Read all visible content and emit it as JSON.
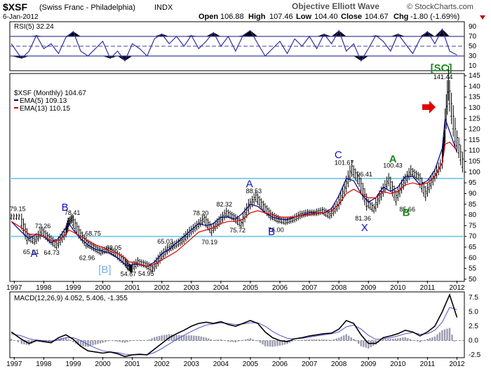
{
  "header": {
    "symbol": "$XSF",
    "name": "(Swiss Franc - Philadelphia)",
    "exchange": "INDX",
    "date": "6-Jan-2012",
    "subtitle": "Objective Elliott Wave",
    "brand": "© StockCharts.com",
    "open_label": "Open",
    "open": "106.88",
    "high_label": "High",
    "high": "107.46",
    "low_label": "Low",
    "low": "104.40",
    "close_label": "Close",
    "close": "104.67",
    "chg_label": "Chg",
    "chg": "-1.80 (-1.69%)"
  },
  "colors": {
    "price_bar": "#000000",
    "ema5": "#000080",
    "ema13": "#e00000",
    "hline": "#87ceeb",
    "rsi_line": "#3030a0",
    "macd_line": "#000000",
    "signal_line": "#5050d0",
    "hist": "#9a9ab0",
    "wave_blue": "#1010c0",
    "wave_green": "#1a8a1a",
    "wave_lightblue": "#7aaee8",
    "arrow": "#e00000"
  },
  "chart_data": [
    {
      "type": "line",
      "panel": "rsi",
      "title": "RSI(5) 32.24",
      "ylim": [
        0,
        100
      ],
      "yticks": [
        "10",
        "30",
        "50",
        "70",
        "90"
      ],
      "levels": [
        30,
        50,
        70
      ],
      "series": [
        {
          "name": "RSI(5)",
          "x": [
            1996.9,
            1997.25,
            1997.5,
            1997.75,
            1998.0,
            1998.25,
            1998.5,
            1998.75,
            1999.0,
            1999.25,
            1999.5,
            1999.75,
            2000.0,
            2000.25,
            2000.5,
            2000.75,
            2001.0,
            2001.25,
            2001.5,
            2001.75,
            2002.0,
            2002.25,
            2002.5,
            2002.75,
            2003.0,
            2003.25,
            2003.5,
            2003.75,
            2004.0,
            2004.25,
            2004.5,
            2004.75,
            2005.0,
            2005.25,
            2005.5,
            2005.75,
            2006.0,
            2006.25,
            2006.5,
            2006.75,
            2007.0,
            2007.25,
            2007.5,
            2007.75,
            2008.0,
            2008.25,
            2008.5,
            2008.75,
            2009.0,
            2009.25,
            2009.5,
            2009.75,
            2010.0,
            2010.25,
            2010.5,
            2010.75,
            2011.0,
            2011.25,
            2011.5,
            2011.75,
            2012.0
          ],
          "values": [
            55,
            25,
            40,
            72,
            45,
            55,
            35,
            68,
            80,
            40,
            30,
            45,
            60,
            25,
            40,
            20,
            55,
            45,
            30,
            65,
            75,
            55,
            70,
            50,
            72,
            45,
            60,
            78,
            50,
            70,
            40,
            72,
            82,
            55,
            30,
            45,
            60,
            35,
            65,
            50,
            70,
            45,
            75,
            55,
            82,
            40,
            55,
            20,
            45,
            72,
            60,
            40,
            75,
            55,
            35,
            65,
            80,
            55,
            85,
            40,
            32
          ]
        }
      ]
    },
    {
      "type": "line",
      "panel": "price",
      "title": "$XSF (Monthly) 104.67",
      "ylim": [
        50,
        145
      ],
      "yticks": [
        "50",
        "55",
        "60",
        "65",
        "70",
        "75",
        "80",
        "85",
        "90",
        "95",
        "100",
        "105",
        "110",
        "115",
        "120",
        "125",
        "130",
        "135",
        "140",
        "145"
      ],
      "horizontal_levels": [
        97,
        70
      ],
      "x": [
        1996.9,
        1997.25,
        1997.5,
        1997.75,
        1998.0,
        1998.25,
        1998.5,
        1998.75,
        1998.85,
        1999.0,
        1999.25,
        1999.5,
        1999.75,
        2000.0,
        2000.25,
        2000.5,
        2000.75,
        2000.9,
        2001.0,
        2001.25,
        2001.5,
        2001.75,
        2002.0,
        2002.25,
        2002.5,
        2002.75,
        2003.0,
        2003.25,
        2003.5,
        2003.75,
        2004.0,
        2004.25,
        2004.5,
        2004.75,
        2005.0,
        2005.25,
        2005.5,
        2005.75,
        2006.0,
        2006.25,
        2006.5,
        2006.75,
        2007.0,
        2007.25,
        2007.5,
        2007.75,
        2008.0,
        2008.25,
        2008.5,
        2008.75,
        2009.0,
        2009.25,
        2009.5,
        2009.75,
        2010.0,
        2010.25,
        2010.5,
        2010.75,
        2011.0,
        2011.25,
        2011.5,
        2011.6,
        2011.75,
        2012.0
      ],
      "series": [
        {
          "name": "$XSF",
          "values": [
            79.15,
            70,
            68,
            72.26,
            69,
            66,
            71,
            76,
            78.41,
            72,
            67,
            65,
            63,
            64,
            62,
            59,
            56,
            54.67,
            58,
            57,
            55,
            60,
            64,
            66,
            68,
            72,
            75,
            78.2,
            73,
            77,
            81,
            79,
            76,
            84,
            88.53,
            84,
            80,
            78,
            77,
            78,
            80,
            81,
            81,
            82,
            80,
            84,
            92,
            101.67,
            96,
            86,
            83,
            90,
            96.41,
            88,
            95,
            100.43,
            98,
            90,
            97,
            103,
            115,
            141.44,
            118,
            104.67
          ]
        },
        {
          "name": "EMA(5) 109.13",
          "values": [
            77,
            72,
            69,
            71,
            70,
            67,
            69,
            74,
            76,
            73,
            69,
            66,
            64,
            63,
            62,
            60,
            57,
            56,
            57,
            57,
            56,
            58,
            62,
            64,
            67,
            70,
            73,
            76,
            75,
            76,
            79,
            79,
            78,
            81,
            85,
            84,
            81,
            79,
            78,
            78,
            79,
            80,
            81,
            81,
            81,
            83,
            89,
            97,
            96,
            90,
            86,
            88,
            93,
            91,
            93,
            98,
            98,
            94,
            96,
            101,
            111,
            125,
            119,
            109.13
          ]
        },
        {
          "name": "EMA(13) 110.15",
          "values": [
            77,
            74,
            71,
            71,
            70,
            68,
            68,
            71,
            73,
            72,
            70,
            68,
            66,
            65,
            63,
            62,
            60,
            58,
            58,
            57,
            56,
            57,
            59,
            61,
            63,
            66,
            69,
            72,
            73,
            74,
            76,
            77,
            77,
            78,
            81,
            82,
            81,
            80,
            79,
            79,
            79,
            80,
            80,
            81,
            81,
            82,
            85,
            90,
            92,
            90,
            88,
            88,
            91,
            90,
            91,
            94,
            95,
            94,
            95,
            98,
            104,
            113,
            114,
            110.15
          ]
        }
      ],
      "annotations": [
        {
          "text": "79.15"
        },
        {
          "text": "72.26"
        },
        {
          "text": "65.01"
        },
        {
          "text": "64.73"
        },
        {
          "text": "78.41"
        },
        {
          "text": "68.75"
        },
        {
          "text": "62.96"
        },
        {
          "text": "62.05"
        },
        {
          "text": "54.67"
        },
        {
          "text": "54.95"
        },
        {
          "text": "65.03"
        },
        {
          "text": "78.20"
        },
        {
          "text": "70.19"
        },
        {
          "text": "82.32"
        },
        {
          "text": "75.72"
        },
        {
          "text": "88.53"
        },
        {
          "text": "76.00"
        },
        {
          "text": "101.67"
        },
        {
          "text": "96.41"
        },
        {
          "text": "81.36"
        },
        {
          "text": "100.43"
        },
        {
          "text": "85.66"
        },
        {
          "text": "141.44"
        }
      ],
      "wave_labels": [
        {
          "text": "A",
          "color": "blue"
        },
        {
          "text": "B",
          "color": "blue"
        },
        {
          "text": "[B]",
          "color": "lightblue"
        },
        {
          "text": "A",
          "color": "blue"
        },
        {
          "text": "B",
          "color": "blue"
        },
        {
          "text": "C",
          "color": "blue"
        },
        {
          "text": "X",
          "color": "blue"
        },
        {
          "text": "A",
          "color": "green"
        },
        {
          "text": "B",
          "color": "green"
        },
        {
          "text": "[SC]",
          "color": "green"
        }
      ]
    },
    {
      "type": "line",
      "panel": "macd",
      "title": "MACD(12,26,9) 4.052, 5.406, -1.355",
      "ylim": [
        -3.0,
        8.5
      ],
      "yticks": [
        "-2.5",
        "0.0",
        "2.5",
        "5.0",
        "7.5"
      ],
      "x": [
        1996.9,
        1997.25,
        1997.5,
        1997.75,
        1998.0,
        1998.25,
        1998.5,
        1998.75,
        1999.0,
        1999.25,
        1999.5,
        1999.75,
        2000.0,
        2000.25,
        2000.5,
        2000.75,
        2001.0,
        2001.25,
        2001.5,
        2001.75,
        2002.0,
        2002.25,
        2002.5,
        2002.75,
        2003.0,
        2003.25,
        2003.5,
        2003.75,
        2004.0,
        2004.25,
        2004.5,
        2004.75,
        2005.0,
        2005.25,
        2005.5,
        2005.75,
        2006.0,
        2006.25,
        2006.5,
        2006.75,
        2007.0,
        2007.25,
        2007.5,
        2007.75,
        2008.0,
        2008.25,
        2008.5,
        2008.75,
        2009.0,
        2009.25,
        2009.5,
        2009.75,
        2010.0,
        2010.25,
        2010.5,
        2010.75,
        2011.0,
        2011.25,
        2011.5,
        2011.75,
        2012.0
      ],
      "series": [
        {
          "name": "MACD",
          "values": [
            1.5,
            0.2,
            -0.5,
            0.0,
            -0.2,
            -0.4,
            0.5,
            1.0,
            0.2,
            -1.0,
            -1.8,
            -2.0,
            -2.2,
            -2.0,
            -2.3,
            -2.8,
            -2.5,
            -2.4,
            -2.5,
            -1.5,
            -0.5,
            0.5,
            1.2,
            1.8,
            2.5,
            3.0,
            3.2,
            3.0,
            3.3,
            2.8,
            2.5,
            3.0,
            3.5,
            3.0,
            1.5,
            0.5,
            0.0,
            -0.2,
            0.3,
            0.5,
            0.8,
            1.0,
            1.2,
            1.3,
            2.0,
            3.5,
            3.0,
            1.0,
            -0.5,
            -0.5,
            0.5,
            0.8,
            1.2,
            1.8,
            1.5,
            0.8,
            1.5,
            2.5,
            5.0,
            8.0,
            4.052
          ]
        },
        {
          "name": "Signal",
          "values": [
            1.2,
            0.8,
            0.3,
            0.1,
            0.0,
            -0.1,
            0.1,
            0.5,
            0.5,
            0.0,
            -0.7,
            -1.3,
            -1.8,
            -2.0,
            -2.1,
            -2.4,
            -2.5,
            -2.5,
            -2.5,
            -2.1,
            -1.4,
            -0.6,
            0.2,
            0.9,
            1.6,
            2.2,
            2.7,
            2.9,
            3.1,
            3.0,
            2.8,
            2.9,
            3.1,
            3.1,
            2.5,
            1.6,
            0.9,
            0.4,
            0.3,
            0.4,
            0.6,
            0.8,
            1.0,
            1.2,
            1.5,
            2.4,
            2.7,
            2.0,
            0.9,
            0.2,
            0.3,
            0.5,
            0.8,
            1.2,
            1.4,
            1.1,
            1.2,
            1.8,
            3.2,
            5.8,
            5.406
          ]
        }
      ]
    }
  ],
  "x_axis_labels": [
    "1997",
    "1998",
    "1999",
    "2000",
    "2001",
    "2002",
    "2003",
    "2004",
    "2005",
    "2006",
    "2007",
    "2008",
    "2009",
    "2010",
    "2011",
    "2012"
  ]
}
